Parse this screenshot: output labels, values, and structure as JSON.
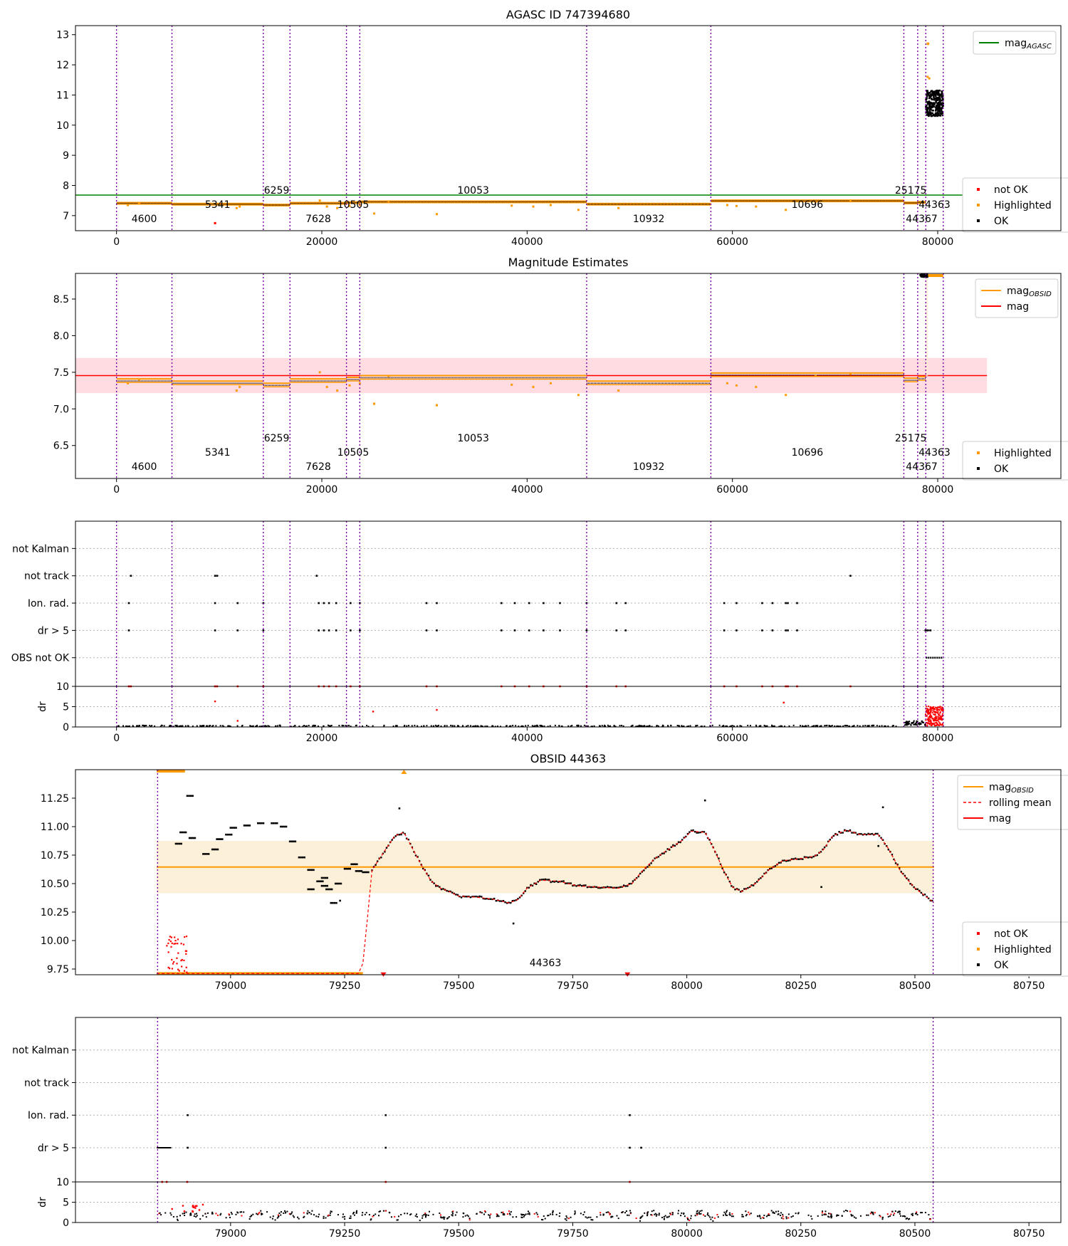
{
  "colors": {
    "ok": "#000000",
    "highlighted": "#ff9900",
    "not_ok": "#ff0000",
    "agasc_line": "#008000",
    "mag_line": "#ff0000",
    "mag_obsid": "#ff9900",
    "rolling_mean": "#ff0000",
    "obs_vline": "#7b00a8",
    "band_mag": "#ffd6dc",
    "band_obsid": "#fdecd0"
  },
  "chart_data": [
    {
      "id": "agasc",
      "type": "scatter",
      "title": "AGASC ID 747394680",
      "xlim": [
        -4000,
        92000
      ],
      "ylim": [
        6.5,
        13.3
      ],
      "xticks": [
        0,
        20000,
        40000,
        60000,
        80000
      ],
      "yticks": [
        7,
        8,
        9,
        10,
        11,
        12,
        13
      ],
      "lines": [
        {
          "name": "mag_AGASC",
          "y": 7.68,
          "color": "#008000"
        }
      ],
      "legend_top": [
        {
          "label": "mag",
          "sub": "AGASC",
          "kind": "line",
          "color": "#008000"
        }
      ],
      "legend_bottom": [
        {
          "label": "not OK",
          "color": "#ff0000"
        },
        {
          "label": "Highlighted",
          "color": "#ff9900"
        },
        {
          "label": "OK",
          "color": "#000000"
        }
      ]
    },
    {
      "id": "estimates",
      "type": "scatter",
      "title": "Magnitude Estimates",
      "xlim": [
        -4000,
        92000
      ],
      "ylim": [
        6.05,
        8.85
      ],
      "xticks": [
        0,
        20000,
        40000,
        60000,
        80000
      ],
      "yticks": [
        6.5,
        7.0,
        7.5,
        8.0,
        8.5
      ],
      "ytick_format": 1,
      "mag": 7.455,
      "mag_band": [
        7.215,
        7.695
      ],
      "legend_top": [
        {
          "label": "mag",
          "sub": "OBSID",
          "kind": "line",
          "color": "#ff9900"
        },
        {
          "label": "mag",
          "sub": "",
          "kind": "line",
          "color": "#ff0000"
        }
      ],
      "legend_bottom": [
        {
          "label": "Highlighted",
          "color": "#ff9900"
        },
        {
          "label": "OK",
          "color": "#000000"
        }
      ]
    },
    {
      "id": "flags",
      "type": "scatter",
      "title": "",
      "xlim": [
        -4000,
        92000
      ],
      "flag_rows": [
        "not Kalman",
        "not track",
        "Ion. rad.",
        "dr > 5",
        "OBS not OK"
      ],
      "xticks": [
        0,
        20000,
        40000,
        60000,
        80000
      ],
      "dr_ylabel": "dr",
      "dr_ylim": [
        0,
        10
      ],
      "dr_yticks": [
        0,
        5,
        10
      ]
    },
    {
      "id": "obsid",
      "type": "line",
      "title": "OBSID 44363",
      "xlim": [
        78660,
        80820
      ],
      "ylim": [
        9.7,
        11.5
      ],
      "xticks": [
        79000,
        79250,
        79500,
        79750,
        80000,
        80250,
        80500,
        80750
      ],
      "yticks": [
        9.75,
        10.0,
        10.25,
        10.5,
        10.75,
        11.0,
        11.25
      ],
      "ytick_format": 2,
      "mag_obsid": 10.645,
      "mag_obsid_band": [
        10.415,
        10.875
      ],
      "x_range": [
        78838,
        80542
      ],
      "legend_top": [
        {
          "label": "mag",
          "sub": "OBSID",
          "kind": "line",
          "color": "#ff9900"
        },
        {
          "label": "rolling mean",
          "sub": "",
          "kind": "dash",
          "color": "#ff0000"
        },
        {
          "label": "mag",
          "sub": "",
          "kind": "line",
          "color": "#ff0000"
        }
      ],
      "legend_bottom": [
        {
          "label": "not OK",
          "color": "#ff0000"
        },
        {
          "label": "Highlighted",
          "color": "#ff9900"
        },
        {
          "label": "OK",
          "color": "#000000"
        }
      ],
      "obsid_label": "44363",
      "rolling_mean": [
        [
          78838,
          9.71
        ],
        [
          78880,
          9.71
        ],
        [
          79000,
          9.71
        ],
        [
          79150,
          9.71
        ],
        [
          79280,
          9.71
        ],
        [
          79290,
          9.8
        ],
        [
          79300,
          10.2
        ],
        [
          79310,
          10.62
        ],
        [
          79320,
          10.68
        ],
        [
          79340,
          10.8
        ],
        [
          79360,
          10.92
        ],
        [
          79380,
          10.95
        ],
        [
          79400,
          10.8
        ],
        [
          79420,
          10.65
        ],
        [
          79440,
          10.52
        ],
        [
          79460,
          10.46
        ],
        [
          79480,
          10.43
        ],
        [
          79500,
          10.39
        ],
        [
          79540,
          10.38
        ],
        [
          79580,
          10.36
        ],
        [
          79610,
          10.33
        ],
        [
          79630,
          10.36
        ],
        [
          79650,
          10.46
        ],
        [
          79680,
          10.53
        ],
        [
          79720,
          10.52
        ],
        [
          79760,
          10.48
        ],
        [
          79800,
          10.47
        ],
        [
          79850,
          10.46
        ],
        [
          79880,
          10.5
        ],
        [
          79900,
          10.6
        ],
        [
          79930,
          10.72
        ],
        [
          79960,
          10.8
        ],
        [
          79990,
          10.88
        ],
        [
          80010,
          10.96
        ],
        [
          80040,
          10.95
        ],
        [
          80060,
          10.8
        ],
        [
          80080,
          10.62
        ],
        [
          80100,
          10.47
        ],
        [
          80120,
          10.43
        ],
        [
          80150,
          10.5
        ],
        [
          80180,
          10.62
        ],
        [
          80210,
          10.7
        ],
        [
          80250,
          10.72
        ],
        [
          80280,
          10.74
        ],
        [
          80300,
          10.8
        ],
        [
          80320,
          10.92
        ],
        [
          80350,
          10.97
        ],
        [
          80380,
          10.93
        ],
        [
          80420,
          10.93
        ],
        [
          80440,
          10.82
        ],
        [
          80470,
          10.6
        ],
        [
          80500,
          10.46
        ],
        [
          80520,
          10.4
        ],
        [
          80542,
          10.33
        ]
      ]
    },
    {
      "id": "obsid_flags",
      "type": "scatter",
      "title": "",
      "xlim": [
        78660,
        80820
      ],
      "flag_rows": [
        "not Kalman",
        "not track",
        "Ion. rad.",
        "dr > 5"
      ],
      "xticks": [
        79000,
        79250,
        79500,
        79750,
        80000,
        80250,
        80500,
        80750
      ],
      "dr_ylabel": "dr",
      "dr_ylim": [
        0,
        10
      ],
      "dr_yticks": [
        0,
        5,
        10
      ]
    }
  ],
  "observations": [
    {
      "obsid": "4600",
      "start": 0,
      "end": 5400,
      "mag": 7.41,
      "label_level": 3
    },
    {
      "obsid": "5341",
      "start": 5400,
      "end": 14300,
      "mag": 7.38,
      "label_level": 2
    },
    {
      "obsid": "6259",
      "start": 14300,
      "end": 16900,
      "mag": 7.35,
      "label_level": 1
    },
    {
      "obsid": "7628",
      "start": 16900,
      "end": 22400,
      "mag": 7.41,
      "label_level": 3
    },
    {
      "obsid": "10505",
      "start": 22400,
      "end": 23700,
      "mag": 7.43,
      "label_level": 2
    },
    {
      "obsid": "10053",
      "start": 23700,
      "end": 45800,
      "mag": 7.455,
      "label_level": 1
    },
    {
      "obsid": "10932",
      "start": 45800,
      "end": 57900,
      "mag": 7.38,
      "label_level": 3
    },
    {
      "obsid": "10696",
      "start": 57900,
      "end": 76700,
      "mag": 7.49,
      "label_level": 2
    },
    {
      "obsid": "25175",
      "start": 76700,
      "end": 78050,
      "mag": 7.42,
      "label_level": 1
    },
    {
      "obsid": "44367",
      "start": 78050,
      "end": 78840,
      "mag": 7.44,
      "label_level": 3
    },
    {
      "obsid": "44363",
      "start": 78840,
      "end": 80540,
      "mag": 10.645,
      "label_level": 2
    }
  ],
  "highlighted_outliers": [
    [
      9600,
      6.75
    ],
    [
      11700,
      7.25
    ],
    [
      19800,
      7.5
    ],
    [
      20500,
      7.3
    ],
    [
      21500,
      7.25
    ],
    [
      22700,
      7.32
    ],
    [
      23700,
      7.35
    ],
    [
      25100,
      7.07
    ],
    [
      31200,
      7.05
    ],
    [
      38500,
      7.33
    ],
    [
      40600,
      7.3
    ],
    [
      42300,
      7.35
    ],
    [
      45000,
      7.19
    ],
    [
      48900,
      7.25
    ],
    [
      59500,
      7.35
    ],
    [
      60400,
      7.32
    ],
    [
      62300,
      7.3
    ],
    [
      65200,
      7.19
    ],
    [
      68100,
      7.45
    ],
    [
      71500,
      7.48
    ],
    [
      1100,
      7.35
    ],
    [
      2200,
      7.4
    ],
    [
      12000,
      7.3
    ],
    [
      26500,
      7.45
    ]
  ]
}
